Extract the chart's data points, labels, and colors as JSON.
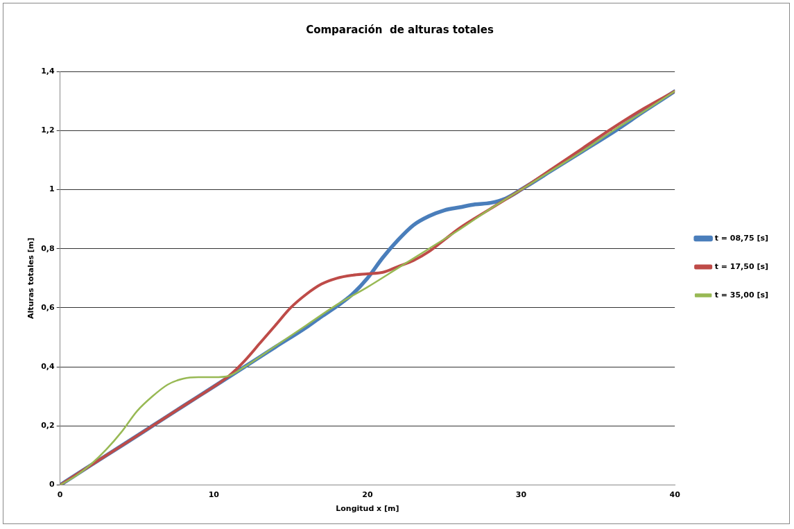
{
  "chart_data": {
    "type": "line",
    "title": "Comparación  de alturas totales",
    "xlabel": "Longitud x [m]",
    "ylabel": "Alturas totales [m]",
    "xlim": [
      0,
      40
    ],
    "xticks": [
      0,
      10,
      20,
      30,
      40
    ],
    "ylim": [
      0,
      1.4
    ],
    "yticks": [
      0,
      {
        "value": 0.2,
        "label": "0,2"
      },
      {
        "value": 0.4,
        "label": "0,4"
      },
      {
        "value": 0.6,
        "label": "0,6"
      },
      {
        "value": 0.8,
        "label": "0,8"
      },
      1,
      {
        "value": 1.2,
        "label": "1,2"
      },
      {
        "value": 1.4,
        "label": "1,4"
      }
    ],
    "grid": "y",
    "legend": "right",
    "marker": "none",
    "line_style": "solid",
    "series": [
      {
        "name": "t = 08,75 [s]",
        "color": "#4a7ebb",
        "x": [
          0,
          2,
          4,
          6,
          8,
          10,
          12,
          14,
          16,
          17,
          18,
          19,
          20,
          21,
          22,
          23,
          24,
          25,
          26,
          27,
          28,
          29,
          30,
          32,
          34,
          36,
          38,
          40
        ],
        "values": [
          0,
          0.067,
          0.133,
          0.2,
          0.267,
          0.333,
          0.4,
          0.467,
          0.533,
          0.57,
          0.605,
          0.645,
          0.7,
          0.77,
          0.83,
          0.88,
          0.91,
          0.93,
          0.94,
          0.95,
          0.955,
          0.97,
          1.0,
          1.065,
          1.13,
          1.195,
          1.265,
          1.333
        ]
      },
      {
        "name": "t = 17,50 [s]",
        "color": "#be4b48",
        "x": [
          0,
          2,
          4,
          6,
          8,
          10,
          11,
          12,
          13,
          14,
          15,
          16,
          17,
          18,
          19,
          20,
          21,
          22,
          23,
          24,
          25,
          26,
          28,
          30,
          32,
          34,
          36,
          38,
          40
        ],
        "values": [
          0,
          0.067,
          0.133,
          0.2,
          0.267,
          0.333,
          0.37,
          0.42,
          0.48,
          0.54,
          0.6,
          0.645,
          0.68,
          0.7,
          0.71,
          0.715,
          0.72,
          0.74,
          0.76,
          0.79,
          0.83,
          0.87,
          0.935,
          1.0,
          1.07,
          1.14,
          1.21,
          1.275,
          1.333
        ]
      },
      {
        "name": "t = 35,00 [s]",
        "color": "#98b954",
        "x": [
          0,
          1,
          2,
          3,
          4,
          5,
          6,
          7,
          8,
          9,
          10,
          11,
          12,
          14,
          16,
          18,
          20,
          22,
          24,
          26,
          28,
          30,
          32,
          34,
          36,
          38,
          40
        ],
        "values": [
          0,
          0.03,
          0.07,
          0.12,
          0.18,
          0.25,
          0.3,
          0.34,
          0.36,
          0.365,
          0.365,
          0.37,
          0.4,
          0.47,
          0.54,
          0.61,
          0.67,
          0.735,
          0.8,
          0.865,
          0.935,
          1.0,
          1.065,
          1.13,
          1.2,
          1.265,
          1.333
        ]
      }
    ]
  }
}
